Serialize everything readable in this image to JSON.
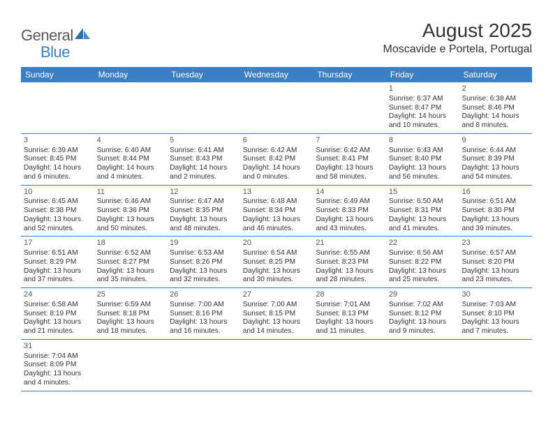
{
  "brand": {
    "part1": "General",
    "part2": "Blue"
  },
  "title": "August 2025",
  "location": "Moscavide e Portela, Portugal",
  "header_bg": "#3b7fc4",
  "weekdays": [
    "Sunday",
    "Monday",
    "Tuesday",
    "Wednesday",
    "Thursday",
    "Friday",
    "Saturday"
  ],
  "weeks": [
    [
      null,
      null,
      null,
      null,
      null,
      {
        "n": "1",
        "sr": "Sunrise: 6:37 AM",
        "ss": "Sunset: 8:47 PM",
        "d1": "Daylight: 14 hours",
        "d2": "and 10 minutes."
      },
      {
        "n": "2",
        "sr": "Sunrise: 6:38 AM",
        "ss": "Sunset: 8:46 PM",
        "d1": "Daylight: 14 hours",
        "d2": "and 8 minutes."
      }
    ],
    [
      {
        "n": "3",
        "sr": "Sunrise: 6:39 AM",
        "ss": "Sunset: 8:45 PM",
        "d1": "Daylight: 14 hours",
        "d2": "and 6 minutes."
      },
      {
        "n": "4",
        "sr": "Sunrise: 6:40 AM",
        "ss": "Sunset: 8:44 PM",
        "d1": "Daylight: 14 hours",
        "d2": "and 4 minutes."
      },
      {
        "n": "5",
        "sr": "Sunrise: 6:41 AM",
        "ss": "Sunset: 8:43 PM",
        "d1": "Daylight: 14 hours",
        "d2": "and 2 minutes."
      },
      {
        "n": "6",
        "sr": "Sunrise: 6:42 AM",
        "ss": "Sunset: 8:42 PM",
        "d1": "Daylight: 14 hours",
        "d2": "and 0 minutes."
      },
      {
        "n": "7",
        "sr": "Sunrise: 6:42 AM",
        "ss": "Sunset: 8:41 PM",
        "d1": "Daylight: 13 hours",
        "d2": "and 58 minutes."
      },
      {
        "n": "8",
        "sr": "Sunrise: 6:43 AM",
        "ss": "Sunset: 8:40 PM",
        "d1": "Daylight: 13 hours",
        "d2": "and 56 minutes."
      },
      {
        "n": "9",
        "sr": "Sunrise: 6:44 AM",
        "ss": "Sunset: 8:39 PM",
        "d1": "Daylight: 13 hours",
        "d2": "and 54 minutes."
      }
    ],
    [
      {
        "n": "10",
        "sr": "Sunrise: 6:45 AM",
        "ss": "Sunset: 8:38 PM",
        "d1": "Daylight: 13 hours",
        "d2": "and 52 minutes."
      },
      {
        "n": "11",
        "sr": "Sunrise: 6:46 AM",
        "ss": "Sunset: 8:36 PM",
        "d1": "Daylight: 13 hours",
        "d2": "and 50 minutes."
      },
      {
        "n": "12",
        "sr": "Sunrise: 6:47 AM",
        "ss": "Sunset: 8:35 PM",
        "d1": "Daylight: 13 hours",
        "d2": "and 48 minutes."
      },
      {
        "n": "13",
        "sr": "Sunrise: 6:48 AM",
        "ss": "Sunset: 8:34 PM",
        "d1": "Daylight: 13 hours",
        "d2": "and 46 minutes."
      },
      {
        "n": "14",
        "sr": "Sunrise: 6:49 AM",
        "ss": "Sunset: 8:33 PM",
        "d1": "Daylight: 13 hours",
        "d2": "and 43 minutes."
      },
      {
        "n": "15",
        "sr": "Sunrise: 6:50 AM",
        "ss": "Sunset: 8:31 PM",
        "d1": "Daylight: 13 hours",
        "d2": "and 41 minutes."
      },
      {
        "n": "16",
        "sr": "Sunrise: 6:51 AM",
        "ss": "Sunset: 8:30 PM",
        "d1": "Daylight: 13 hours",
        "d2": "and 39 minutes."
      }
    ],
    [
      {
        "n": "17",
        "sr": "Sunrise: 6:51 AM",
        "ss": "Sunset: 8:29 PM",
        "d1": "Daylight: 13 hours",
        "d2": "and 37 minutes."
      },
      {
        "n": "18",
        "sr": "Sunrise: 6:52 AM",
        "ss": "Sunset: 8:27 PM",
        "d1": "Daylight: 13 hours",
        "d2": "and 35 minutes."
      },
      {
        "n": "19",
        "sr": "Sunrise: 6:53 AM",
        "ss": "Sunset: 8:26 PM",
        "d1": "Daylight: 13 hours",
        "d2": "and 32 minutes."
      },
      {
        "n": "20",
        "sr": "Sunrise: 6:54 AM",
        "ss": "Sunset: 8:25 PM",
        "d1": "Daylight: 13 hours",
        "d2": "and 30 minutes."
      },
      {
        "n": "21",
        "sr": "Sunrise: 6:55 AM",
        "ss": "Sunset: 8:23 PM",
        "d1": "Daylight: 13 hours",
        "d2": "and 28 minutes."
      },
      {
        "n": "22",
        "sr": "Sunrise: 6:56 AM",
        "ss": "Sunset: 8:22 PM",
        "d1": "Daylight: 13 hours",
        "d2": "and 25 minutes."
      },
      {
        "n": "23",
        "sr": "Sunrise: 6:57 AM",
        "ss": "Sunset: 8:20 PM",
        "d1": "Daylight: 13 hours",
        "d2": "and 23 minutes."
      }
    ],
    [
      {
        "n": "24",
        "sr": "Sunrise: 6:58 AM",
        "ss": "Sunset: 8:19 PM",
        "d1": "Daylight: 13 hours",
        "d2": "and 21 minutes."
      },
      {
        "n": "25",
        "sr": "Sunrise: 6:59 AM",
        "ss": "Sunset: 8:18 PM",
        "d1": "Daylight: 13 hours",
        "d2": "and 18 minutes."
      },
      {
        "n": "26",
        "sr": "Sunrise: 7:00 AM",
        "ss": "Sunset: 8:16 PM",
        "d1": "Daylight: 13 hours",
        "d2": "and 16 minutes."
      },
      {
        "n": "27",
        "sr": "Sunrise: 7:00 AM",
        "ss": "Sunset: 8:15 PM",
        "d1": "Daylight: 13 hours",
        "d2": "and 14 minutes."
      },
      {
        "n": "28",
        "sr": "Sunrise: 7:01 AM",
        "ss": "Sunset: 8:13 PM",
        "d1": "Daylight: 13 hours",
        "d2": "and 11 minutes."
      },
      {
        "n": "29",
        "sr": "Sunrise: 7:02 AM",
        "ss": "Sunset: 8:12 PM",
        "d1": "Daylight: 13 hours",
        "d2": "and 9 minutes."
      },
      {
        "n": "30",
        "sr": "Sunrise: 7:03 AM",
        "ss": "Sunset: 8:10 PM",
        "d1": "Daylight: 13 hours",
        "d2": "and 7 minutes."
      }
    ],
    [
      {
        "n": "31",
        "sr": "Sunrise: 7:04 AM",
        "ss": "Sunset: 8:09 PM",
        "d1": "Daylight: 13 hours",
        "d2": "and 4 minutes."
      },
      null,
      null,
      null,
      null,
      null,
      null
    ]
  ]
}
